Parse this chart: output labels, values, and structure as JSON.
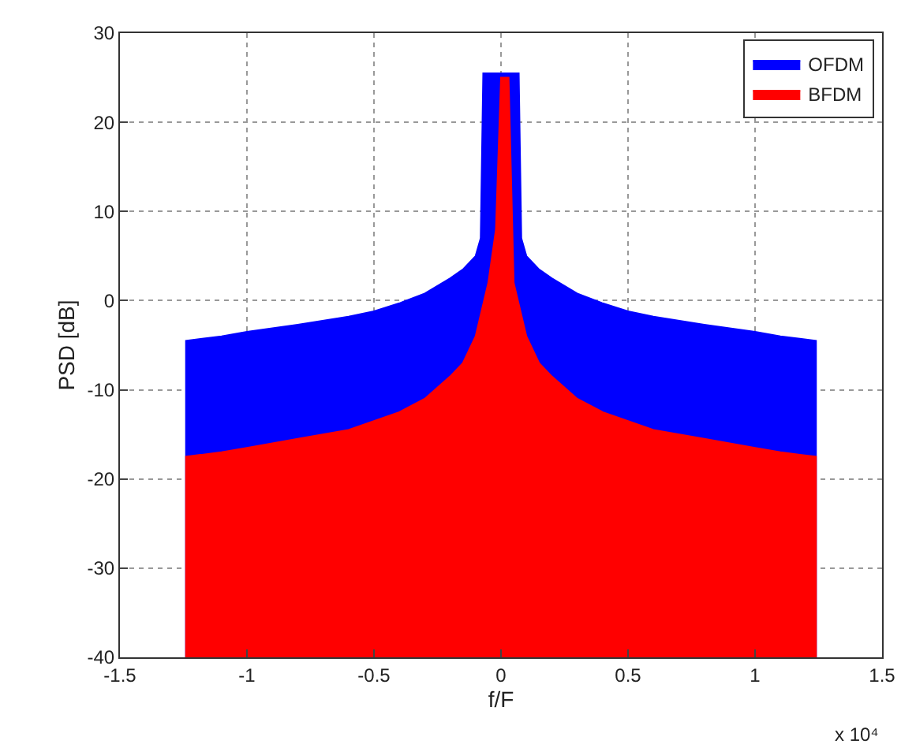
{
  "chart_data": {
    "type": "area",
    "xlabel": "f/F",
    "ylabel": "PSD [dB]",
    "annotations": [
      "x 10⁴"
    ],
    "xlim": [
      -1.5,
      1.5
    ],
    "xticks": [
      -1.5,
      -1,
      -0.5,
      0,
      0.5,
      1,
      1.5
    ],
    "ylim": [
      -40,
      30
    ],
    "yticks": [
      -40,
      -30,
      -20,
      -10,
      0,
      10,
      20,
      30
    ],
    "grid": true,
    "legend": "top right",
    "series": [
      {
        "name": "OFDM",
        "color": "#0000ff",
        "x": [
          -1.24,
          -1.24,
          -1.1,
          -1.0,
          -0.8,
          -0.6,
          -0.5,
          -0.4,
          -0.3,
          -0.2,
          -0.15,
          -0.1,
          -0.08,
          -0.07,
          0.07,
          0.08,
          0.1,
          0.15,
          0.2,
          0.3,
          0.4,
          0.5,
          0.6,
          0.8,
          1.0,
          1.1,
          1.24,
          1.24
        ],
        "values": [
          -40,
          -4.5,
          -4,
          -3.5,
          -2.7,
          -1.8,
          -1.2,
          -0.3,
          0.8,
          2.5,
          3.5,
          5,
          7,
          25.5,
          25.5,
          7,
          5,
          3.5,
          2.5,
          0.8,
          -0.3,
          -1.2,
          -1.8,
          -2.7,
          -3.5,
          -4,
          -4.5,
          -40
        ]
      },
      {
        "name": "BFDM",
        "color": "#ff0000",
        "x": [
          -1.24,
          -1.24,
          -1.1,
          -1.0,
          -0.8,
          -0.6,
          -0.5,
          -0.4,
          -0.3,
          -0.2,
          -0.15,
          -0.1,
          -0.05,
          -0.02,
          0.0,
          0.03,
          0.05,
          0.1,
          0.15,
          0.2,
          0.3,
          0.4,
          0.5,
          0.6,
          0.8,
          1.0,
          1.1,
          1.24,
          1.24
        ],
        "values": [
          -40,
          -17.5,
          -17,
          -16.5,
          -15.5,
          -14.5,
          -13.5,
          -12.5,
          -11,
          -8.5,
          -7,
          -4,
          2,
          8,
          25,
          25,
          2,
          -4,
          -7,
          -8.5,
          -11,
          -12.5,
          -13.5,
          -14.5,
          -15.5,
          -16.5,
          -17,
          -17.5,
          -40
        ]
      }
    ]
  }
}
